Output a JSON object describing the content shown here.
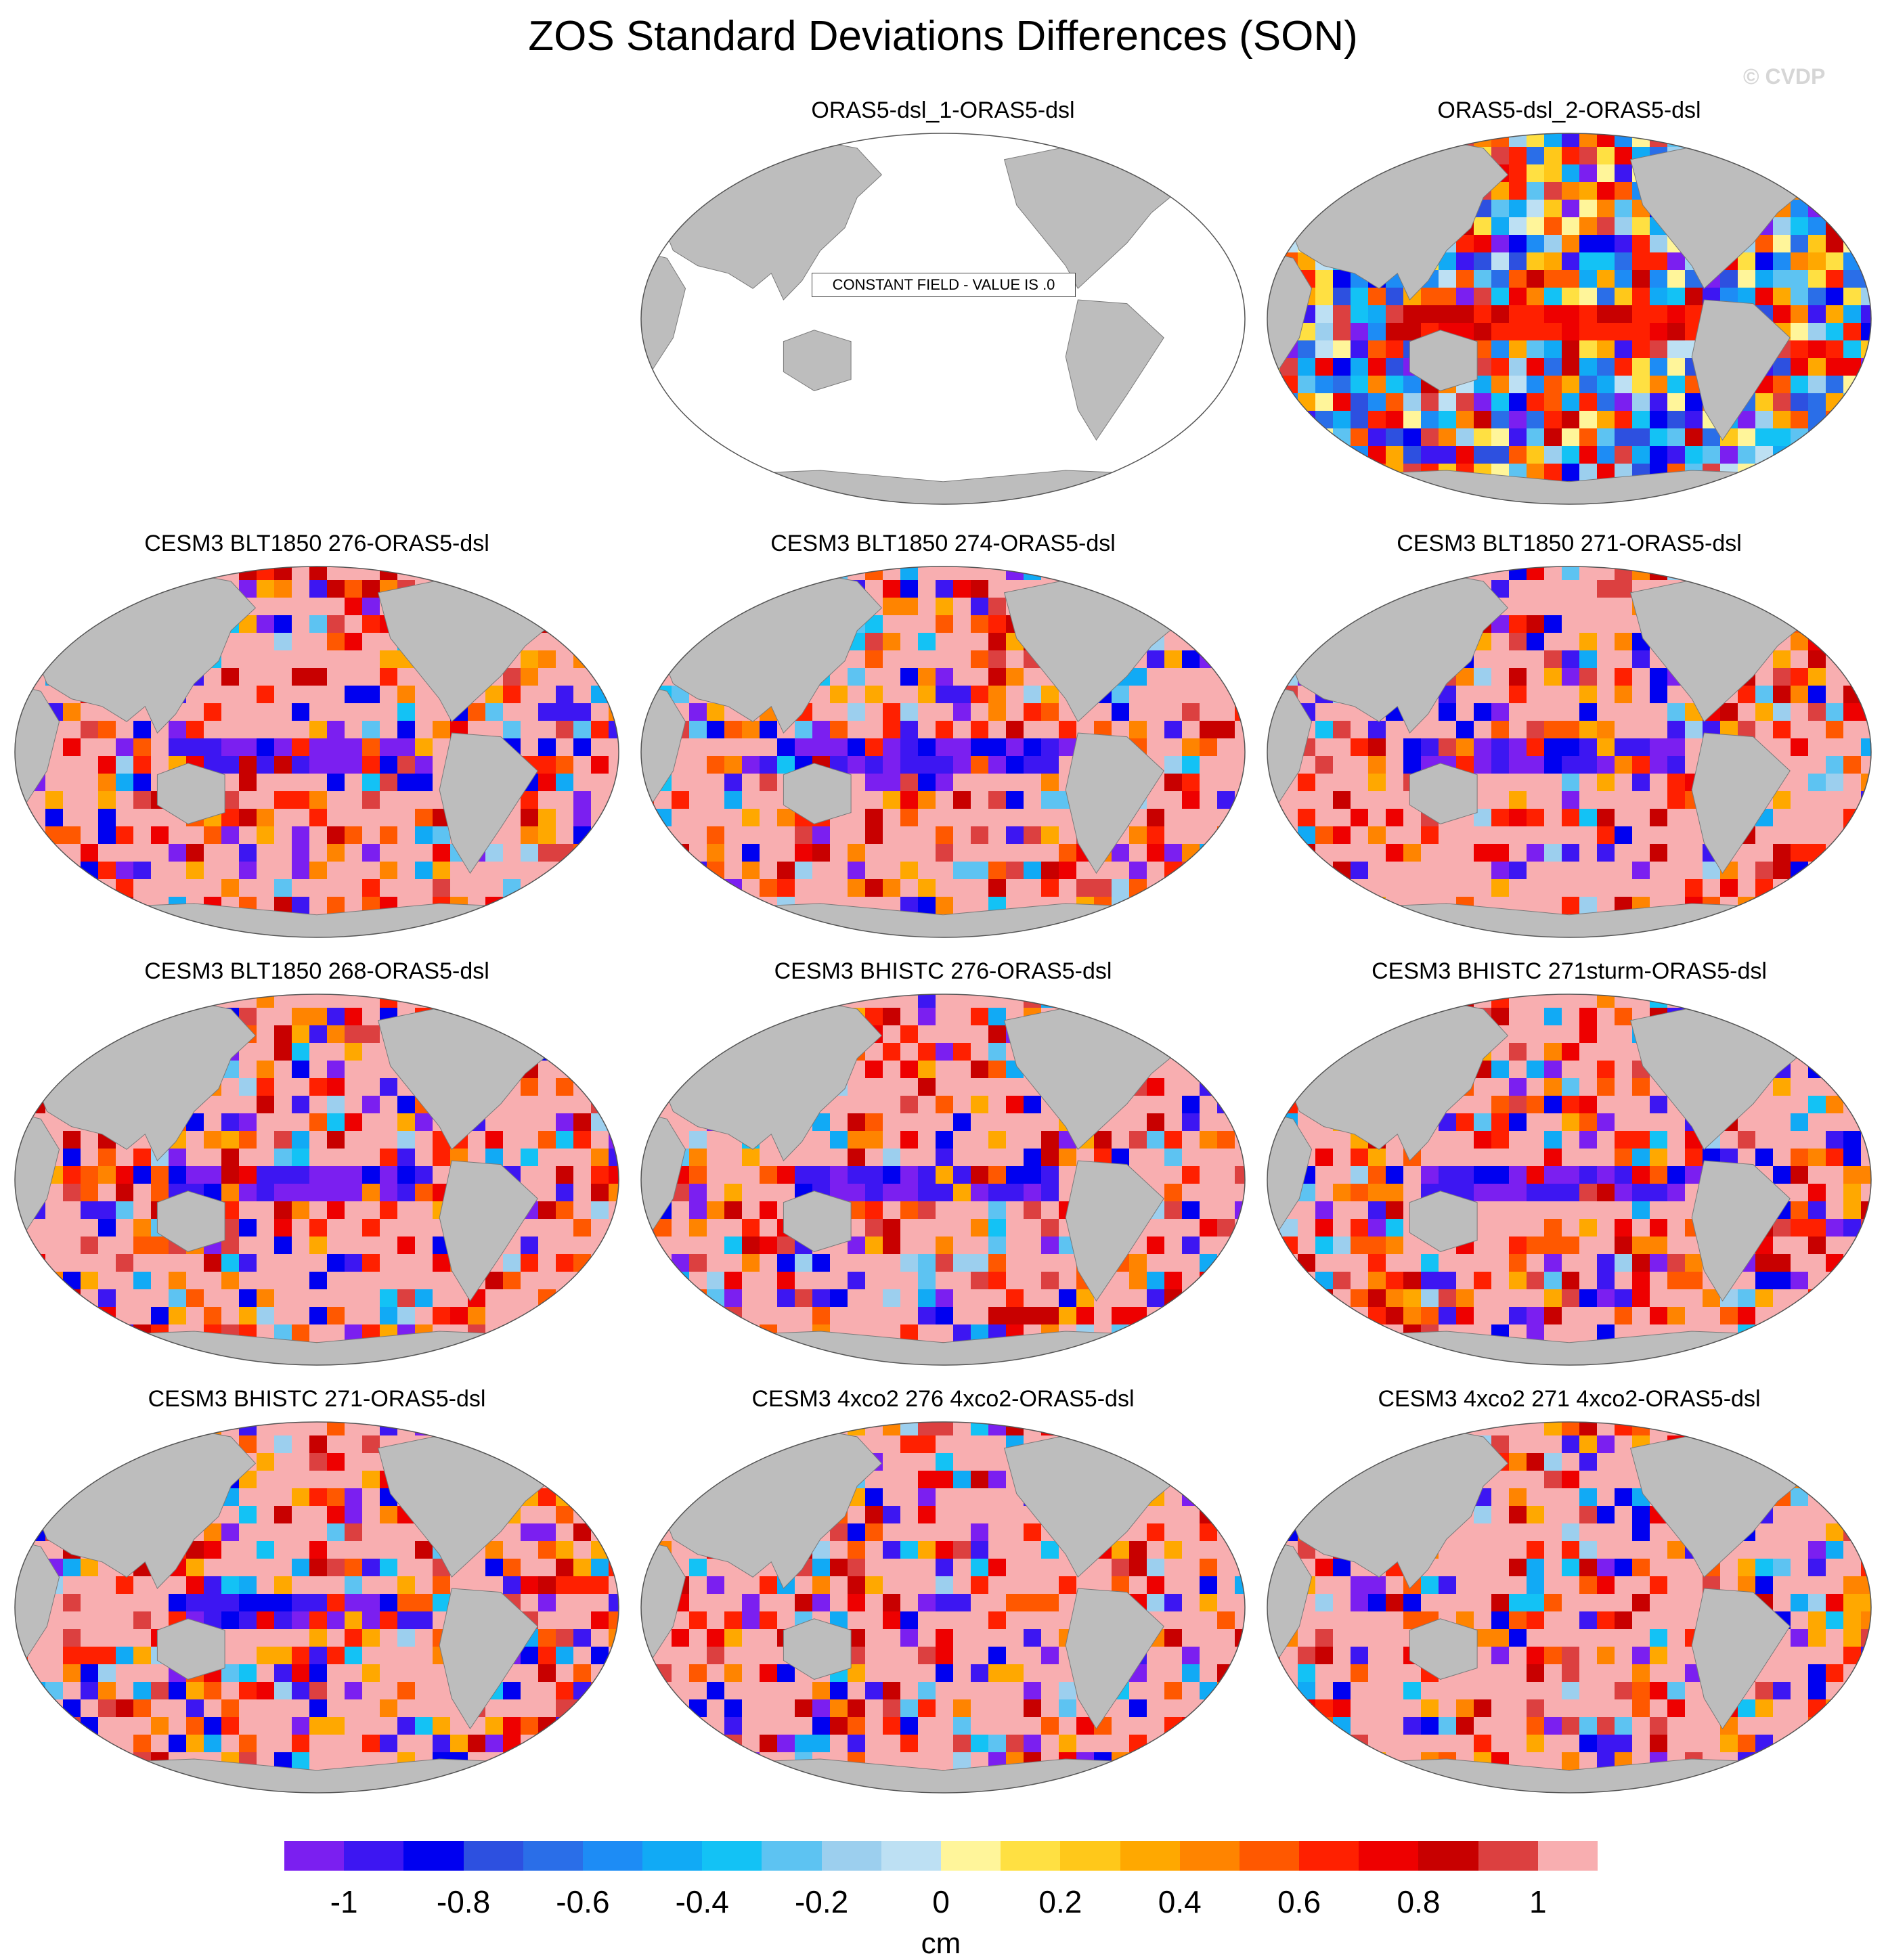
{
  "figure": {
    "title": "ZOS Standard Deviations Differences (SON)",
    "watermark": "© CVDP"
  },
  "colorbar": {
    "units": "cm",
    "colors": [
      "#7b1ff0",
      "#3d16f2",
      "#0000f0",
      "#2d50e0",
      "#2a6ee8",
      "#1d8cf5",
      "#11aaf5",
      "#13c2f5",
      "#5dc3f2",
      "#9ccfee",
      "#bde0f3",
      "#fff59a",
      "#ffe042",
      "#ffc81a",
      "#ffa800",
      "#ff8400",
      "#ff5800",
      "#ff2000",
      "#ee0000",
      "#c80000",
      "#dc4040",
      "#f8aeb0"
    ],
    "tick_labels": [
      "-1",
      "-0.8",
      "-0.6",
      "-0.4",
      "-0.2",
      "0",
      "0.2",
      "0.4",
      "0.6",
      "0.8",
      "1"
    ],
    "tick_values": [
      -1,
      -0.8,
      -0.6,
      -0.4,
      -0.2,
      0,
      0.2,
      0.4,
      0.6,
      0.8,
      1
    ]
  },
  "panels": [
    {
      "title": "ORAS5-dsl_1-ORAS5-dsl",
      "style": "constant",
      "annotation": "CONSTANT FIELD - VALUE IS .0"
    },
    {
      "title": "ORAS5-dsl_2-ORAS5-dsl",
      "style": "obs_noise"
    },
    {
      "title": "CESM3 BLT1850 276-ORAS5-dsl",
      "style": "model"
    },
    {
      "title": "CESM3 BLT1850 274-ORAS5-dsl",
      "style": "model"
    },
    {
      "title": "CESM3 BLT1850 271-ORAS5-dsl",
      "style": "model"
    },
    {
      "title": "CESM3 BLT1850 268-ORAS5-dsl",
      "style": "model"
    },
    {
      "title": "CESM3 BHISTC 276-ORAS5-dsl",
      "style": "model"
    },
    {
      "title": "CESM3 BHISTC 271sturm-ORAS5-dsl",
      "style": "model"
    },
    {
      "title": "CESM3 BHISTC 271-ORAS5-dsl",
      "style": "model"
    },
    {
      "title": "CESM3 4xco2 276 4xco2-ORAS5-dsl",
      "style": "model_4x"
    },
    {
      "title": "CESM3 4xco2 271 4xco2-ORAS5-dsl",
      "style": "model_4x"
    }
  ]
}
